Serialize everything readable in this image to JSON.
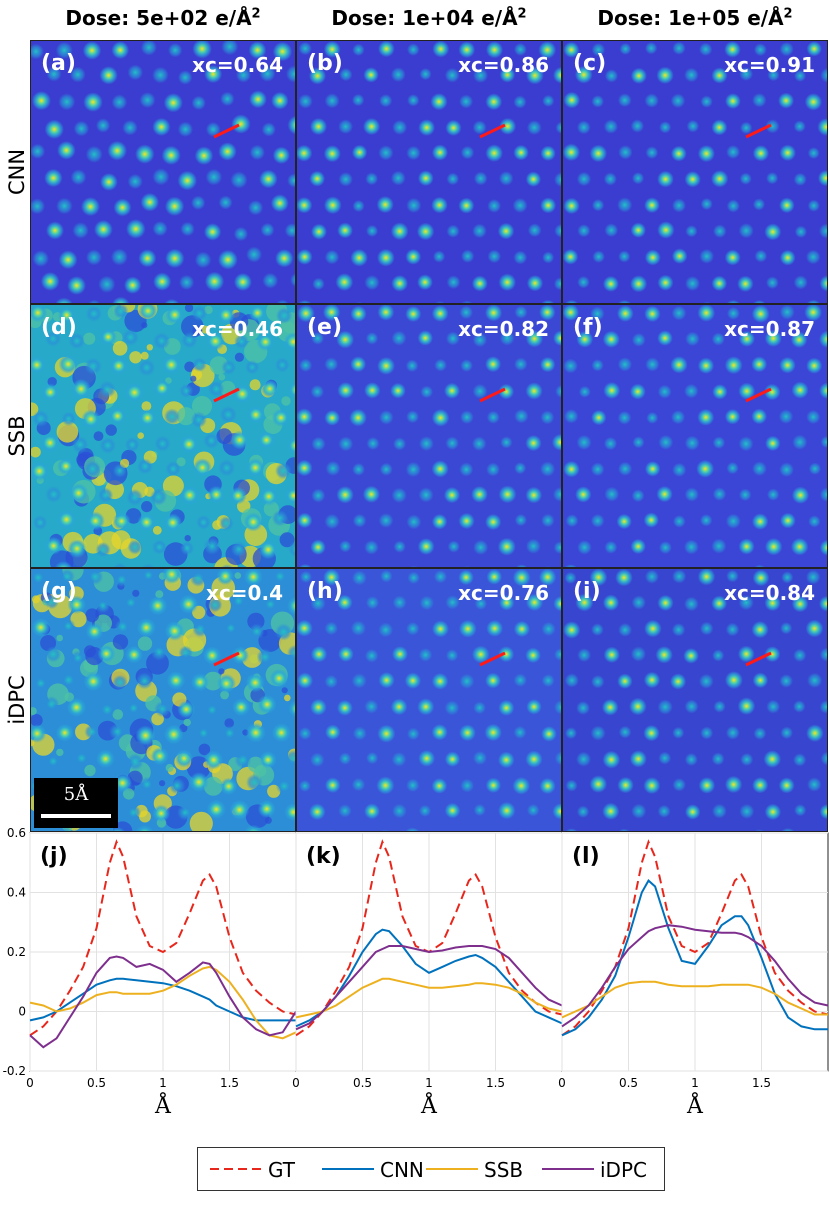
{
  "columns": [
    {
      "dose": "Dose: 5e+02 e/Å",
      "sup": "2"
    },
    {
      "dose": "Dose: 1e+04 e/Å",
      "sup": "2"
    },
    {
      "dose": "Dose: 1e+05 e/Å",
      "sup": "2"
    }
  ],
  "rows": [
    "CNN",
    "SSB",
    "iDPC"
  ],
  "panels": [
    {
      "label": "(a)",
      "xc": "xc=0.64"
    },
    {
      "label": "(b)",
      "xc": "xc=0.86"
    },
    {
      "label": "(c)",
      "xc": "xc=0.91"
    },
    {
      "label": "(d)",
      "xc": "xc=0.46"
    },
    {
      "label": "(e)",
      "xc": "xc=0.82"
    },
    {
      "label": "(f)",
      "xc": "xc=0.87"
    },
    {
      "label": "(g)",
      "xc": "xc=0.4"
    },
    {
      "label": "(h)",
      "xc": "xc=0.76"
    },
    {
      "label": "(i)",
      "xc": "xc=0.84"
    }
  ],
  "scalebar": {
    "label": "5Å"
  },
  "colors": {
    "GT": "#e8271c",
    "CNN": "#0072bd",
    "SSB": "#edb120",
    "iDPC": "#7e2f8e",
    "map_bg": "#3b3fd0",
    "map_low": "#2f3cc4",
    "map_mid": "#23b5d0",
    "map_high": "#f7e51e",
    "line_marker": "#ff1a1a"
  },
  "legend": [
    "GT",
    "CNN",
    "SSB",
    "iDPC"
  ],
  "chart_data": [
    {
      "type": "line",
      "panel_label": "(j)",
      "xlim": [
        0,
        2
      ],
      "ylim": [
        -0.2,
        0.6
      ],
      "xticks": [
        "0",
        "0.5",
        "1",
        "1.5"
      ],
      "yticks": [
        "-0.2",
        "0",
        "0.2",
        "0.4",
        "0.6"
      ],
      "xlabel": "Å",
      "grid": true,
      "x": [
        0,
        0.1,
        0.2,
        0.3,
        0.4,
        0.5,
        0.6,
        0.65,
        0.7,
        0.8,
        0.9,
        1.0,
        1.1,
        1.2,
        1.3,
        1.35,
        1.4,
        1.5,
        1.6,
        1.7,
        1.8,
        1.9,
        2.0
      ],
      "series": [
        {
          "name": "GT",
          "style": "dashed",
          "values": [
            -0.08,
            -0.05,
            0.0,
            0.07,
            0.15,
            0.28,
            0.5,
            0.57,
            0.52,
            0.32,
            0.22,
            0.2,
            0.23,
            0.33,
            0.44,
            0.46,
            0.42,
            0.25,
            0.13,
            0.07,
            0.03,
            0.0,
            -0.01
          ]
        },
        {
          "name": "CNN",
          "values": [
            -0.03,
            -0.02,
            0.0,
            0.03,
            0.06,
            0.09,
            0.105,
            0.11,
            0.11,
            0.105,
            0.1,
            0.095,
            0.085,
            0.07,
            0.05,
            0.04,
            0.02,
            0.0,
            -0.02,
            -0.03,
            -0.03,
            -0.03,
            -0.03
          ]
        },
        {
          "name": "SSB",
          "values": [
            0.03,
            0.02,
            0.0,
            0.01,
            0.03,
            0.055,
            0.065,
            0.065,
            0.06,
            0.06,
            0.06,
            0.07,
            0.09,
            0.12,
            0.145,
            0.15,
            0.14,
            0.1,
            0.04,
            -0.03,
            -0.08,
            -0.09,
            -0.07
          ]
        },
        {
          "name": "iDPC",
          "values": [
            -0.08,
            -0.12,
            -0.09,
            -0.02,
            0.05,
            0.13,
            0.18,
            0.185,
            0.18,
            0.15,
            0.16,
            0.14,
            0.1,
            0.13,
            0.165,
            0.16,
            0.13,
            0.05,
            -0.02,
            -0.06,
            -0.08,
            -0.07,
            0.0
          ]
        }
      ]
    },
    {
      "type": "line",
      "panel_label": "(k)",
      "xlim": [
        0,
        2
      ],
      "ylim": [
        -0.2,
        0.6
      ],
      "xticks": [
        "0",
        "0.5",
        "1",
        "1.5"
      ],
      "xlabel": "Å",
      "grid": true,
      "x": [
        0,
        0.1,
        0.2,
        0.3,
        0.4,
        0.5,
        0.6,
        0.65,
        0.7,
        0.8,
        0.9,
        1.0,
        1.1,
        1.2,
        1.3,
        1.35,
        1.4,
        1.5,
        1.6,
        1.7,
        1.8,
        1.9,
        2.0
      ],
      "series": [
        {
          "name": "GT",
          "style": "dashed",
          "values": [
            -0.08,
            -0.05,
            0.0,
            0.07,
            0.15,
            0.28,
            0.5,
            0.57,
            0.52,
            0.32,
            0.22,
            0.2,
            0.23,
            0.33,
            0.44,
            0.46,
            0.42,
            0.25,
            0.13,
            0.07,
            0.03,
            0.0,
            -0.01
          ]
        },
        {
          "name": "CNN",
          "values": [
            -0.05,
            -0.03,
            0.0,
            0.05,
            0.12,
            0.2,
            0.26,
            0.275,
            0.27,
            0.22,
            0.16,
            0.13,
            0.15,
            0.17,
            0.185,
            0.19,
            0.18,
            0.15,
            0.1,
            0.05,
            0.0,
            -0.02,
            -0.04
          ]
        },
        {
          "name": "SSB",
          "values": [
            -0.02,
            -0.01,
            0.0,
            0.02,
            0.05,
            0.08,
            0.1,
            0.11,
            0.11,
            0.1,
            0.09,
            0.08,
            0.08,
            0.085,
            0.09,
            0.095,
            0.095,
            0.09,
            0.08,
            0.06,
            0.03,
            0.01,
            0.0
          ]
        },
        {
          "name": "iDPC",
          "values": [
            -0.06,
            -0.04,
            0.0,
            0.05,
            0.1,
            0.15,
            0.2,
            0.21,
            0.22,
            0.22,
            0.21,
            0.2,
            0.205,
            0.215,
            0.22,
            0.22,
            0.22,
            0.21,
            0.18,
            0.13,
            0.08,
            0.04,
            0.02
          ]
        }
      ]
    },
    {
      "type": "line",
      "panel_label": "(l)",
      "xlim": [
        0,
        2
      ],
      "ylim": [
        -0.2,
        0.6
      ],
      "xticks": [
        "0",
        "0.5",
        "1",
        "1.5"
      ],
      "xlabel": "Å",
      "grid": true,
      "x": [
        0,
        0.1,
        0.2,
        0.3,
        0.4,
        0.5,
        0.6,
        0.65,
        0.7,
        0.8,
        0.9,
        1.0,
        1.1,
        1.2,
        1.3,
        1.35,
        1.4,
        1.5,
        1.6,
        1.7,
        1.8,
        1.9,
        2.0
      ],
      "series": [
        {
          "name": "GT",
          "style": "dashed",
          "values": [
            -0.08,
            -0.05,
            0.0,
            0.07,
            0.15,
            0.28,
            0.5,
            0.57,
            0.52,
            0.32,
            0.22,
            0.2,
            0.23,
            0.33,
            0.44,
            0.46,
            0.42,
            0.25,
            0.13,
            0.07,
            0.03,
            0.0,
            -0.01
          ]
        },
        {
          "name": "CNN",
          "values": [
            -0.08,
            -0.06,
            -0.02,
            0.04,
            0.12,
            0.25,
            0.4,
            0.44,
            0.42,
            0.28,
            0.17,
            0.16,
            0.22,
            0.29,
            0.32,
            0.32,
            0.29,
            0.18,
            0.06,
            -0.02,
            -0.05,
            -0.06,
            -0.06
          ]
        },
        {
          "name": "SSB",
          "values": [
            -0.02,
            0.0,
            0.02,
            0.05,
            0.08,
            0.095,
            0.1,
            0.1,
            0.1,
            0.09,
            0.085,
            0.085,
            0.085,
            0.09,
            0.09,
            0.09,
            0.09,
            0.08,
            0.06,
            0.03,
            0.01,
            -0.01,
            -0.01
          ]
        },
        {
          "name": "iDPC",
          "values": [
            -0.05,
            -0.02,
            0.02,
            0.08,
            0.15,
            0.21,
            0.25,
            0.27,
            0.28,
            0.29,
            0.285,
            0.275,
            0.27,
            0.265,
            0.265,
            0.26,
            0.25,
            0.22,
            0.17,
            0.11,
            0.06,
            0.03,
            0.02
          ]
        }
      ]
    }
  ]
}
